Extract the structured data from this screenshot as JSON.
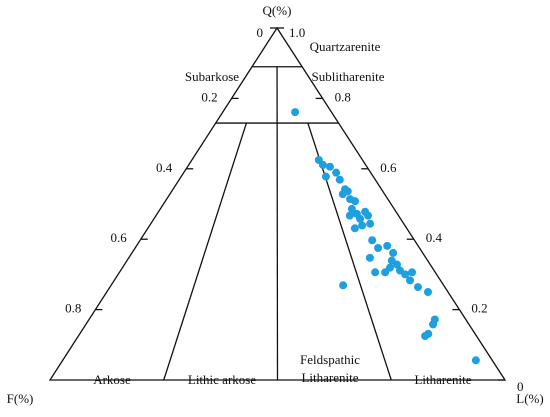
{
  "chart_data": {
    "type": "ternary",
    "top_axis_title": "Q(%)",
    "left_axis_title": "F(%)",
    "right_axis_title": "L(%)",
    "fticks": [
      0,
      0.2,
      0.4,
      0.6,
      0.8
    ],
    "qticks": [
      {
        "value": 1,
        "label": "1.0"
      },
      0.8,
      0.6,
      0.4,
      0.2,
      0
    ],
    "q_boundaries": [
      0.89,
      0.73
    ],
    "ratio_lines": [
      0.25,
      0.5,
      0.75
    ],
    "region_labels": [
      "Quartzarenite",
      "Subarkose",
      "Sublitharenite",
      "Arkose",
      "Lithic arkose",
      "Feldspathic",
      "Litharenite",
      "Litharenite"
    ],
    "series": [
      {
        "color": "#1e9fe0",
        "q": [
          0.761,
          0.625,
          0.611,
          0.606,
          0.578,
          0.589,
          0.569,
          0.542,
          0.528,
          0.536,
          0.514,
          0.508,
          0.486,
          0.467,
          0.472,
          0.458,
          0.478,
          0.467,
          0.444,
          0.439,
          0.431,
          0.397,
          0.375,
          0.381,
          0.361,
          0.339,
          0.319,
          0.328,
          0.306,
          0.306,
          0.311,
          0.3,
          0.283,
          0.306,
          0.264,
          0.25,
          0.269,
          0.172,
          0.158,
          0.131,
          0.125,
          0.056,
          0.347
        ],
        "l": [
          0.159,
          0.279,
          0.295,
          0.313,
          0.318,
          0.335,
          0.353,
          0.378,
          0.38,
          0.387,
          0.403,
          0.417,
          0.421,
          0.426,
          0.439,
          0.453,
          0.454,
          0.466,
          0.482,
          0.467,
          0.455,
          0.51,
          0.534,
          0.551,
          0.574,
          0.582,
          0.588,
          0.599,
          0.584,
          0.562,
          0.614,
          0.631,
          0.65,
          0.643,
          0.677,
          0.706,
          0.51,
          0.76,
          0.763,
          0.766,
          0.762,
          0.908,
          0.53
        ]
      }
    ]
  }
}
